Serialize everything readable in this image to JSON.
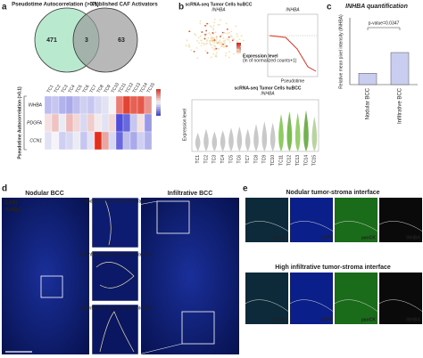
{
  "panel_labels": [
    "a",
    "b",
    "c",
    "d",
    "e"
  ],
  "venn": {
    "left_label": "Pseudotime Autocorrelation (>0.1)",
    "right_label": "Published CAF Activators",
    "left_only": 471,
    "overlap": 3,
    "right_only": 63
  },
  "heatmap": {
    "side_label": "Pseudotime Autocorrelation (>0.1)",
    "columns": [
      "TC1",
      "TC2",
      "TC3",
      "TC4",
      "TC5",
      "TC6",
      "TC7",
      "TC8",
      "TC9",
      "TC10",
      "TC11",
      "TC12",
      "TC13",
      "TC14",
      "TC15"
    ],
    "rows": [
      {
        "name": "INHBA",
        "values": [
          -0.6,
          -0.5,
          -0.7,
          -0.8,
          -0.6,
          -0.4,
          -0.5,
          -0.3,
          -0.2,
          0.0,
          1.2,
          1.8,
          1.5,
          1.6,
          1.0
        ]
      },
      {
        "name": "PDGFA",
        "values": [
          0.2,
          0.5,
          -0.1,
          0.6,
          0.3,
          -0.3,
          0.4,
          0.1,
          -0.2,
          0.3,
          -1.8,
          -1.5,
          -0.5,
          0.2,
          -1.0
        ]
      },
      {
        "name": "CCN1",
        "values": [
          -0.2,
          0.0,
          -0.4,
          -0.3,
          -0.1,
          -0.5,
          -0.2,
          2.0,
          0.8,
          -0.3,
          -1.5,
          -0.6,
          -0.8,
          -0.4,
          -0.7
        ]
      }
    ],
    "color_range": [
      -2,
      2
    ],
    "low_color": "#3b3bd6",
    "mid_color": "#f4f4f8",
    "high_color": "#e0301e"
  },
  "umap": {
    "title": "scRNA-seq Tumor Cells huBCC",
    "gene": "INHBA",
    "legend_title": "Expression level",
    "legend_subtitle": "(ln of normalized counts+1)"
  },
  "pseudotime_plot": {
    "gene": "INHBA",
    "x_label": "Pseudotime"
  },
  "violin": {
    "title": "scRNA-seq Tumor Cells huBCC",
    "gene": "INHBA",
    "y_label": "Expression level",
    "categories": [
      "TC1",
      "TC2",
      "TC3",
      "TC4",
      "TC5",
      "TC6",
      "TC7",
      "TC8",
      "TC9",
      "TC10",
      "TC11",
      "TC12",
      "TC13",
      "TC14",
      "TC15"
    ],
    "values": [
      1.5,
      1.8,
      1.6,
      1.7,
      1.9,
      2.0,
      1.8,
      2.2,
      2.4,
      2.3,
      3.0,
      3.2,
      3.1,
      3.3,
      2.8
    ],
    "colors": [
      "#bbbbbb",
      "#bbbbbb",
      "#bbbbbb",
      "#bbbbbb",
      "#bbbbbb",
      "#bbbbbb",
      "#bbbbbb",
      "#bbbbbb",
      "#bbbbbb",
      "#bbbbbb",
      "#6fbf3a",
      "#5aaa2a",
      "#7cc444",
      "#4f9c24",
      "#a9c98a"
    ],
    "ylim": [
      0,
      4
    ]
  },
  "quant": {
    "title": "INHBA quantification",
    "p_value": "p-value=0.0347",
    "y_label": "Relative mean pixel intensity (INHBA)",
    "categories": [
      "Nodular BCC",
      "Infiltrative BCC"
    ],
    "values": [
      0.17,
      0.48
    ],
    "color": "#c9cdf0",
    "ylim": [
      0,
      1
    ]
  },
  "micro": {
    "stain_1": "DAPI",
    "stain_2": "INHBA",
    "left_title": "Nodular BCC",
    "right_title": "Infiltrative BCC",
    "insets": [
      "Nodular tumor-stroma interface",
      "Low infiltrative tumor-stroma interface",
      "High infiltrative tumor-stroma interface"
    ]
  },
  "ifx": {
    "rows": [
      {
        "title": "Nodular tumor-stroma interface",
        "channels": [
          "Merge",
          "DAPI",
          "panCK",
          "INHBA"
        ]
      },
      {
        "title": "High infiltrative tumor-stroma interface",
        "channels": [
          "Merge",
          "DAPI",
          "panCK",
          "INHBA"
        ]
      }
    ]
  }
}
